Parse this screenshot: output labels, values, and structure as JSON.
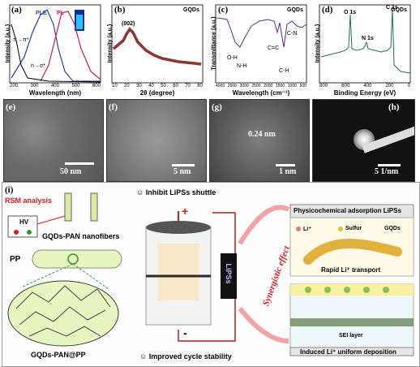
{
  "panels": {
    "a": {
      "label": "(a)",
      "xlabel": "Wavelength (nm)",
      "ylabel": "Intensity (a.u.)",
      "legend": [
        "PLE",
        "PL"
      ],
      "annotations": [
        "π→π*",
        "n→σ*"
      ],
      "ticks": [
        "200",
        "300",
        "400",
        "500",
        "600"
      ]
    },
    "b": {
      "label": "(b)",
      "tag": "GQDs",
      "xlabel": "2θ (degree)",
      "ylabel": "Intensity (a.u.)",
      "peak": "(002)",
      "ticks": [
        "10",
        "20",
        "30",
        "40",
        "50",
        "60",
        "70",
        "80"
      ]
    },
    "c": {
      "label": "(c)",
      "tag": "GQDs",
      "xlabel": "Wavelength (cm⁻¹)",
      "ylabel": "Transmittance (a.u.)",
      "annotations": [
        "O-H",
        "N-H",
        "C=C",
        "C-H",
        "C-N"
      ],
      "ticks": [
        "4000",
        "3500",
        "3000",
        "2500",
        "2000",
        "1500",
        "1000",
        "500"
      ]
    },
    "d": {
      "label": "(d)",
      "tag": "GQDs",
      "xlabel": "Binding Energy (eV)",
      "ylabel": "Intensity (a.u.)",
      "peaks": [
        "O 1s",
        "N 1s",
        "C 1s"
      ],
      "ticks": [
        "800",
        "600",
        "400",
        "200",
        "0"
      ]
    },
    "e": {
      "label": "(e)",
      "scale": "50 nm"
    },
    "f": {
      "label": "(f)",
      "scale": "5 nm"
    },
    "g": {
      "label": "(g)",
      "scale": "1 nm",
      "spacing": "0.24 nm"
    },
    "h": {
      "label": "(h)",
      "scale": "5 1/nm"
    }
  },
  "schematic": {
    "label": "(i)",
    "rsm": "RSM analysis",
    "hv": "HV",
    "nanofibers": "GQDs-PAN nanofibers",
    "pp": "PP",
    "separator": "GQDs-PAN@PP",
    "inhibit": "Inhibit LiPSs shuttle",
    "improved": "Improved cycle stability",
    "synergistic": "Synergistic effect",
    "physico": "Physicochemical adsorption LiPSs",
    "legend": [
      "Li⁺",
      "Sulfur",
      "GQDs"
    ],
    "rapid": "Rapid Li⁺ transport",
    "sei": "SEI layer",
    "induced": "Induced Li⁺ uniform deposition",
    "vertical_text": "LiPSs",
    "plus": "+",
    "minus": "-",
    "ion": "e⁻"
  },
  "colors": {
    "ple": "#2b3fa8",
    "pl": "#d6184a",
    "xrd": "#7a1010",
    "ftir": "#5b2a86",
    "xps": "#1f6e5e",
    "red": "#d81a1a",
    "header_bg": "#e6e6e6"
  }
}
